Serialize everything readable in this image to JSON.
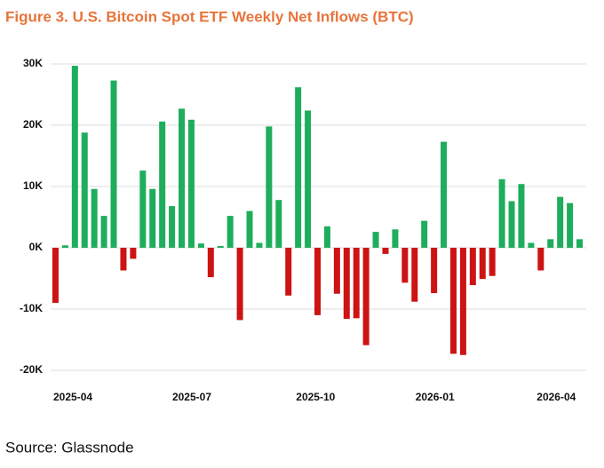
{
  "chart_data": {
    "type": "bar",
    "title": "Figure 3. U.S. Bitcoin Spot ETF Weekly Net Inflows (BTC)",
    "source": "Source: Glassnode",
    "categories": [
      null,
      null,
      null,
      null,
      null,
      null,
      null,
      null,
      null,
      null,
      null,
      null,
      null,
      null,
      null,
      null,
      null,
      null,
      null,
      null,
      null,
      null,
      null,
      null,
      null,
      null,
      null,
      null,
      null,
      null,
      null,
      null,
      null,
      null,
      null,
      null,
      null,
      null,
      null,
      null,
      null,
      null,
      null,
      null,
      null,
      null,
      null,
      null,
      null,
      null,
      null,
      null,
      null,
      null,
      null
    ],
    "values": [
      -9000,
      400,
      29700,
      18800,
      9600,
      5200,
      27300,
      -3700,
      -1800,
      12600,
      9600,
      20600,
      6800,
      22700,
      20900,
      700,
      -4800,
      300,
      5200,
      -11800,
      6000,
      800,
      19800,
      7800,
      -7800,
      26200,
      22400,
      -11000,
      3500,
      -7500,
      -11600,
      -11500,
      -15900,
      2600,
      -1000,
      3000,
      -5700,
      -8800,
      4400,
      -7400,
      17300,
      -17300,
      -17500,
      -6100,
      -5100,
      -4600,
      11200,
      7600,
      10400,
      800,
      -3700,
      1400,
      8300,
      7300,
      1400
    ],
    "positive_color": "#1ead5c",
    "negative_color": "#cc1414",
    "ylim": [
      -20000,
      30000
    ],
    "yticks": [
      {
        "value": -20000,
        "label": "-20K"
      },
      {
        "value": -10000,
        "label": "-10K"
      },
      {
        "value": 0,
        "label": "0K"
      },
      {
        "value": 10000,
        "label": "10K"
      },
      {
        "value": 20000,
        "label": "20K"
      },
      {
        "value": 30000,
        "label": "30K"
      }
    ],
    "xticks": [
      {
        "value": 1.79,
        "label": "2025-04"
      },
      {
        "value": 14.05,
        "label": "2025-07"
      },
      {
        "value": 26.8,
        "label": "2025-10"
      },
      {
        "value": 39.1,
        "label": "2026-01"
      },
      {
        "value": 51.6,
        "label": "2026-04"
      }
    ],
    "grid": true
  }
}
